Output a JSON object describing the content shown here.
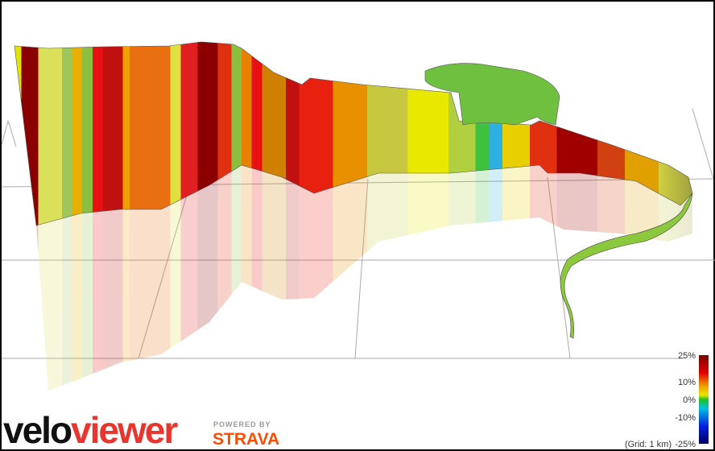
{
  "logo": {
    "part1": "velo",
    "part2": "viewer"
  },
  "powered_by": "POWERED BY",
  "brand": "STRAVA",
  "legend": {
    "ticks": [
      "25%",
      "10%",
      "0%",
      "-10%",
      "-25%"
    ],
    "grid_note": "(Grid: 1 km)"
  }
}
